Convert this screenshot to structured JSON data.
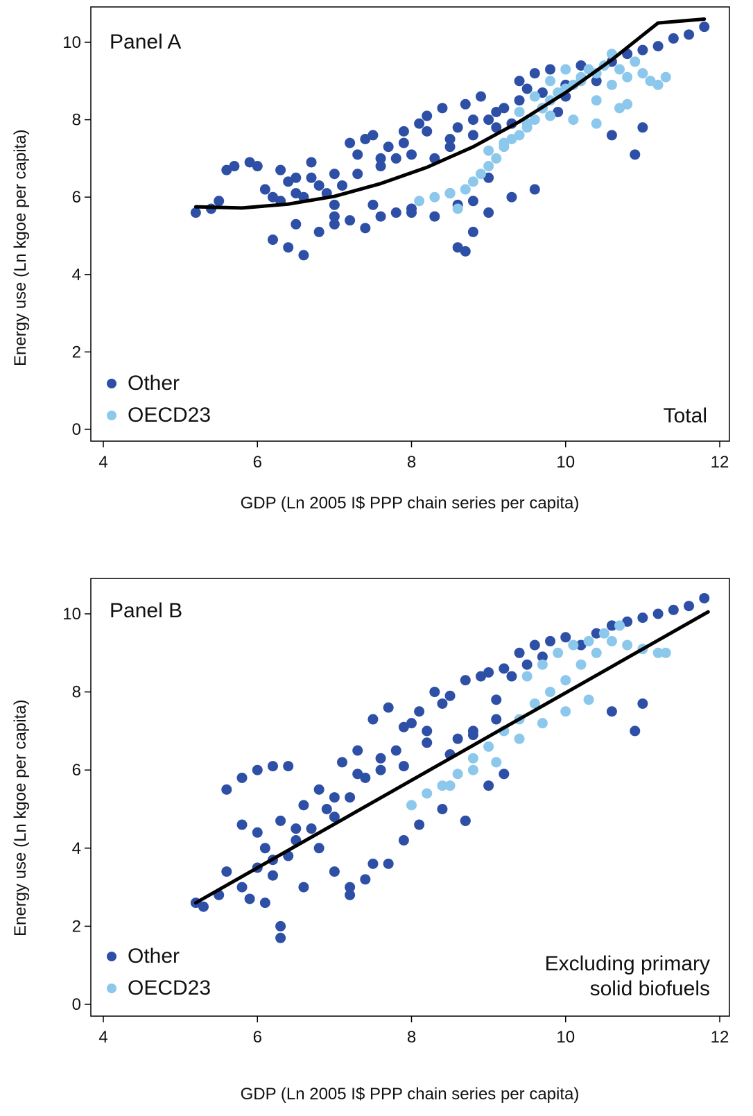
{
  "colors": {
    "other": "#2E4FA6",
    "oecd23": "#8CC8EC",
    "fit": "#000000"
  },
  "chart_data": [
    {
      "type": "scatter",
      "panel_label": "Panel A",
      "annotation": [
        "Total"
      ],
      "xlabel": "GDP (Ln 2005 I$ PPP chain series per capita)",
      "ylabel": "Energy use (Ln kgoe per capita)",
      "xlim": [
        4,
        12
      ],
      "ylim": [
        0,
        10.5
      ],
      "xticks": [
        4,
        6,
        8,
        10,
        12
      ],
      "yticks": [
        0,
        2,
        4,
        6,
        8,
        10
      ],
      "legend": {
        "position": "bottom-left",
        "entries": [
          "Other",
          "OECD23"
        ]
      },
      "series": [
        {
          "name": "Other",
          "x": [
            5.2,
            5.4,
            5.6,
            5.5,
            5.7,
            5.9,
            6.0,
            6.1,
            6.2,
            6.3,
            6.4,
            6.5,
            6.6,
            6.7,
            6.8,
            6.9,
            7.0,
            7.1,
            7.2,
            7.3,
            7.4,
            7.5,
            7.6,
            7.7,
            7.8,
            7.9,
            8.0,
            8.1,
            8.2,
            8.3,
            8.4,
            8.5,
            8.6,
            8.7,
            8.8,
            8.9,
            9.0,
            9.1,
            9.2,
            9.3,
            9.4,
            9.5,
            9.6,
            9.7,
            9.8,
            9.9,
            10.0,
            10.2,
            10.4,
            10.6,
            10.8,
            11.0,
            11.2,
            11.4,
            11.6,
            11.8,
            6.2,
            6.4,
            6.6,
            6.8,
            7.0,
            7.2,
            7.4,
            7.6,
            7.8,
            8.0,
            8.3,
            8.6,
            8.8,
            9.0,
            9.3,
            9.6,
            6.5,
            7.0,
            7.5,
            8.0,
            8.5,
            9.0,
            10.9,
            11.0,
            10.6,
            8.6,
            8.7,
            8.8,
            6.3,
            6.5,
            6.7,
            7.0,
            7.3,
            7.6,
            7.9,
            8.2,
            8.5,
            8.8,
            9.1,
            9.4,
            9.7,
            10.0
          ],
          "y": [
            5.6,
            5.7,
            6.7,
            5.9,
            6.8,
            6.9,
            6.8,
            6.2,
            6.0,
            5.9,
            6.4,
            6.1,
            6.0,
            6.5,
            6.3,
            6.1,
            5.8,
            6.3,
            7.4,
            6.6,
            7.5,
            7.6,
            6.8,
            7.3,
            7.0,
            7.7,
            7.1,
            7.9,
            8.1,
            7.0,
            8.3,
            7.3,
            7.8,
            8.4,
            7.6,
            8.6,
            8.0,
            7.8,
            8.3,
            7.9,
            9.0,
            8.8,
            9.2,
            8.7,
            9.3,
            8.2,
            8.9,
            9.4,
            9.0,
            9.5,
            9.7,
            9.8,
            9.9,
            10.1,
            10.2,
            10.4,
            4.9,
            4.7,
            4.5,
            5.1,
            5.3,
            5.4,
            5.2,
            5.5,
            5.6,
            5.7,
            5.5,
            5.8,
            5.9,
            5.6,
            6.0,
            6.2,
            5.3,
            5.5,
            5.8,
            5.6,
            6.1,
            6.5,
            7.1,
            7.8,
            7.6,
            4.7,
            4.6,
            5.1,
            6.7,
            6.5,
            6.9,
            6.6,
            7.1,
            7.0,
            7.4,
            7.7,
            7.5,
            8.0,
            8.2,
            8.5,
            8.3,
            8.6
          ]
        },
        {
          "name": "OECD23",
          "x": [
            8.1,
            8.3,
            8.5,
            8.6,
            8.7,
            8.8,
            8.9,
            9.0,
            9.1,
            9.2,
            9.3,
            9.4,
            9.5,
            9.6,
            9.7,
            9.8,
            9.9,
            10.0,
            10.1,
            10.2,
            10.3,
            10.4,
            10.5,
            10.6,
            10.7,
            10.8,
            10.9,
            11.0,
            11.1,
            11.2,
            11.3,
            9.4,
            9.6,
            9.8,
            10.0,
            10.2,
            10.4,
            10.6,
            10.8,
            9.0,
            9.2,
            9.5,
            9.8,
            10.1,
            10.4,
            10.7
          ],
          "y": [
            5.9,
            6.0,
            6.1,
            5.7,
            6.2,
            6.4,
            6.6,
            6.8,
            7.0,
            7.3,
            7.5,
            7.6,
            7.9,
            8.0,
            8.3,
            8.5,
            8.7,
            8.8,
            8.9,
            9.1,
            9.3,
            9.2,
            9.4,
            9.7,
            9.3,
            9.1,
            9.5,
            9.2,
            9.0,
            8.9,
            9.1,
            8.2,
            8.6,
            9.0,
            9.3,
            9.0,
            8.5,
            8.9,
            8.4,
            7.2,
            7.4,
            7.8,
            8.1,
            8.0,
            7.9,
            8.3
          ]
        },
        {
          "name": "Fit",
          "x": [
            5.2,
            5.8,
            6.4,
            7.0,
            7.6,
            8.2,
            8.8,
            9.4,
            10.0,
            10.6,
            11.2,
            11.8
          ],
          "y": [
            5.75,
            5.72,
            5.82,
            6.02,
            6.35,
            6.77,
            7.3,
            7.95,
            8.7,
            9.55,
            10.5,
            10.6
          ]
        }
      ]
    },
    {
      "type": "scatter",
      "panel_label": "Panel B",
      "annotation": [
        "Excluding primary",
        "solid biofuels"
      ],
      "xlabel": "GDP (Ln 2005 I$ PPP chain series per capita)",
      "ylabel": "Energy use (Ln kgoe per capita)",
      "xlim": [
        4,
        12
      ],
      "ylim": [
        0,
        10.5
      ],
      "xticks": [
        4,
        6,
        8,
        10,
        12
      ],
      "yticks": [
        0,
        2,
        4,
        6,
        8,
        10
      ],
      "legend": {
        "position": "bottom-left",
        "entries": [
          "Other",
          "OECD23"
        ]
      },
      "series": [
        {
          "name": "Other",
          "x": [
            5.2,
            5.3,
            5.5,
            5.6,
            5.8,
            5.9,
            6.0,
            6.1,
            6.2,
            6.3,
            6.3,
            6.4,
            6.5,
            6.6,
            6.7,
            6.8,
            6.9,
            7.0,
            7.1,
            7.2,
            7.3,
            7.4,
            7.5,
            7.6,
            7.7,
            7.8,
            7.9,
            8.0,
            8.1,
            8.2,
            8.3,
            8.4,
            8.5,
            8.6,
            8.7,
            8.8,
            8.9,
            9.0,
            9.1,
            9.2,
            9.3,
            9.4,
            9.5,
            9.6,
            9.7,
            9.8,
            10.0,
            10.2,
            10.4,
            10.6,
            10.8,
            11.0,
            11.2,
            11.4,
            11.6,
            11.8,
            5.6,
            5.8,
            6.0,
            6.2,
            6.4,
            5.8,
            6.0,
            6.1,
            6.2,
            6.3,
            6.5,
            7.0,
            7.2,
            7.4,
            7.7,
            7.9,
            8.1,
            8.4,
            8.7,
            9.0,
            9.2,
            10.9,
            11.0,
            10.6,
            8.7,
            7.2,
            7.5,
            6.6,
            6.8,
            7.0,
            7.3,
            7.6,
            7.9,
            8.2,
            8.5,
            8.8,
            9.1
          ],
          "y": [
            2.6,
            2.5,
            2.8,
            3.4,
            3.0,
            2.7,
            3.5,
            2.6,
            3.3,
            2.0,
            1.7,
            3.8,
            4.2,
            3.0,
            4.5,
            4.0,
            5.0,
            4.8,
            6.2,
            5.3,
            6.5,
            5.8,
            7.3,
            6.0,
            7.6,
            6.5,
            7.1,
            7.2,
            7.5,
            7.0,
            8.0,
            7.7,
            7.9,
            6.8,
            8.3,
            7.0,
            8.4,
            8.5,
            7.8,
            8.6,
            8.4,
            9.0,
            8.7,
            9.2,
            8.9,
            9.3,
            9.4,
            9.2,
            9.5,
            9.7,
            9.8,
            9.9,
            10.0,
            10.1,
            10.2,
            10.4,
            5.5,
            5.8,
            6.0,
            6.1,
            6.1,
            4.6,
            4.4,
            4.0,
            3.7,
            4.7,
            4.5,
            3.4,
            3.0,
            3.2,
            3.6,
            4.2,
            4.6,
            5.0,
            4.7,
            5.6,
            5.9,
            7.0,
            7.7,
            7.5,
            4.7,
            2.8,
            3.6,
            5.1,
            5.5,
            5.3,
            5.9,
            6.3,
            6.1,
            6.7,
            6.4,
            6.9,
            7.3
          ]
        },
        {
          "name": "OECD23",
          "x": [
            8.0,
            8.2,
            8.4,
            8.6,
            8.8,
            9.0,
            9.2,
            9.4,
            9.6,
            9.8,
            10.0,
            10.2,
            10.4,
            10.6,
            10.8,
            11.0,
            11.2,
            11.3,
            9.5,
            9.7,
            9.9,
            10.1,
            10.3,
            10.5,
            10.7,
            8.5,
            8.8,
            9.1,
            9.4,
            9.7,
            10.0,
            10.3
          ],
          "y": [
            5.1,
            5.4,
            5.6,
            5.9,
            6.3,
            6.6,
            7.0,
            7.3,
            7.7,
            8.0,
            8.3,
            8.7,
            9.0,
            9.3,
            9.2,
            9.1,
            9.0,
            9.0,
            8.4,
            8.7,
            9.0,
            9.2,
            9.3,
            9.5,
            9.7,
            5.6,
            6.0,
            6.2,
            6.8,
            7.2,
            7.5,
            7.8
          ]
        },
        {
          "name": "Fit",
          "x": [
            5.2,
            11.85
          ],
          "y": [
            2.6,
            10.05
          ]
        }
      ]
    }
  ]
}
